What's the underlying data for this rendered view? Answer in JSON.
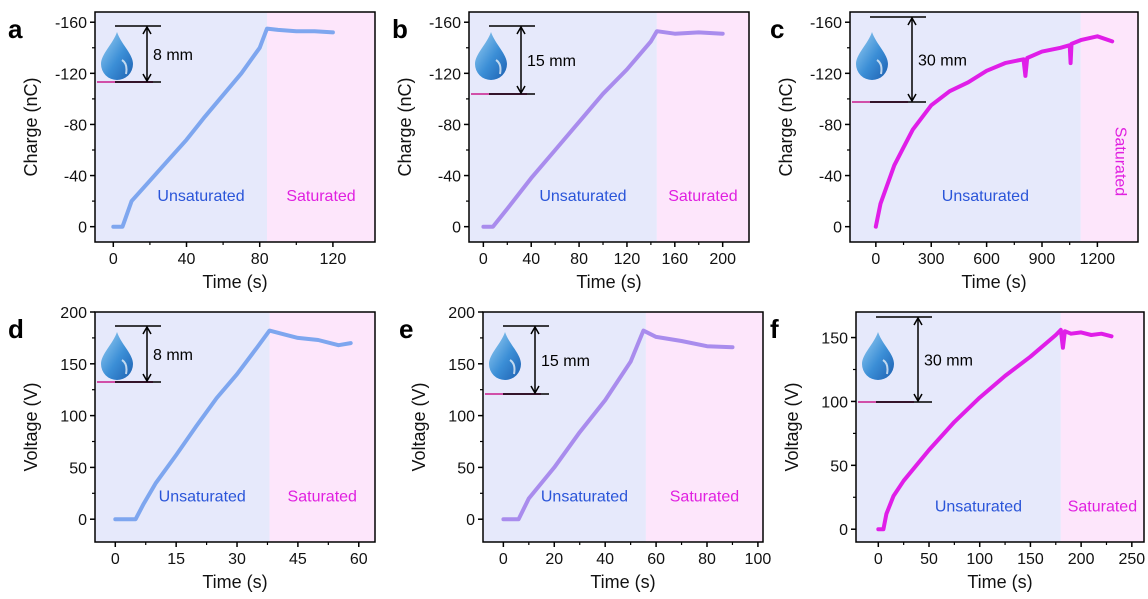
{
  "figure": {
    "colors": {
      "unsat_bg": "#e6e9fb",
      "sat_bg": "#fde6fb",
      "unsat_text": "#2a55d9",
      "sat_text": "#e020e0",
      "blue_line": "#7ea6ef",
      "purple_line": "#a98ced",
      "magenta_line": "#e01ee8"
    },
    "icons": [
      "water-drop-icon"
    ]
  },
  "chart_data": [
    {
      "id": "a",
      "panel_label": "a",
      "type": "line",
      "xlabel": "Time (s)",
      "ylabel": "Charge (nC)",
      "xlim": [
        -10,
        143
      ],
      "ylim": [
        12,
        -168
      ],
      "y_inverted": true,
      "xticks": [
        0,
        40,
        80,
        120
      ],
      "xtick_labels": [
        "0",
        "40",
        "80",
        "120"
      ],
      "yticks": [
        0,
        -40,
        -80,
        -120,
        -160
      ],
      "ytick_labels": [
        "0",
        "-40",
        "-80",
        "-120",
        "-160"
      ],
      "unsaturated_range": [
        -10,
        84
      ],
      "saturated_range": [
        84,
        143
      ],
      "region_labels": {
        "unsaturated": "Unsaturated",
        "saturated": "Saturated"
      },
      "label_y": -20,
      "distance": "8 mm",
      "color": "#7ea6ef",
      "series": [
        {
          "x": [
            0,
            5,
            10,
            20,
            30,
            40,
            50,
            60,
            70,
            80,
            84,
            90,
            100,
            110,
            120
          ],
          "y": [
            0,
            0,
            -20,
            -36,
            -52,
            -68,
            -86,
            -103,
            -120,
            -140,
            -155,
            -154,
            -153,
            -153,
            -152
          ]
        }
      ]
    },
    {
      "id": "b",
      "panel_label": "b",
      "type": "line",
      "xlabel": "Time (s)",
      "ylabel": "Charge (nC)",
      "xlim": [
        -12,
        222
      ],
      "ylim": [
        12,
        -168
      ],
      "y_inverted": true,
      "xticks": [
        0,
        40,
        80,
        120,
        160,
        200
      ],
      "xtick_labels": [
        "0",
        "40",
        "80",
        "120",
        "160",
        "200"
      ],
      "yticks": [
        0,
        -40,
        -80,
        -120,
        -160
      ],
      "ytick_labels": [
        "0",
        "-40",
        "-80",
        "-120",
        "-160"
      ],
      "unsaturated_range": [
        -12,
        145
      ],
      "saturated_range": [
        145,
        222
      ],
      "region_labels": {
        "unsaturated": "Unsaturated",
        "saturated": "Saturated"
      },
      "label_y": -20,
      "distance": "15 mm",
      "color": "#a98ced",
      "series": [
        {
          "x": [
            0,
            8,
            20,
            40,
            60,
            80,
            100,
            120,
            140,
            145,
            160,
            180,
            200
          ],
          "y": [
            0,
            0,
            -14,
            -38,
            -60,
            -82,
            -104,
            -123,
            -145,
            -153,
            -151,
            -152,
            -151
          ]
        }
      ]
    },
    {
      "id": "c",
      "panel_label": "c",
      "type": "line",
      "xlabel": "Time (s)",
      "ylabel": "Charge (nC)",
      "xlim": [
        -140,
        1420
      ],
      "ylim": [
        12,
        -168
      ],
      "y_inverted": true,
      "xticks": [
        0,
        300,
        600,
        900,
        1200
      ],
      "xtick_labels": [
        "0",
        "300",
        "600",
        "900",
        "1200"
      ],
      "yticks": [
        0,
        -40,
        -80,
        -120,
        -160
      ],
      "ytick_labels": [
        "0",
        "-40",
        "-80",
        "-120",
        "-160"
      ],
      "unsaturated_range": [
        -140,
        1110
      ],
      "saturated_range": [
        1110,
        1420
      ],
      "region_labels": {
        "unsaturated": "Unsaturated",
        "saturated": "Saturated"
      },
      "label_y": -20,
      "saturated_label_rotated": true,
      "distance": "30 mm",
      "color": "#e01ee8",
      "series": [
        {
          "x": [
            0,
            25,
            50,
            100,
            150,
            200,
            300,
            400,
            500,
            600,
            700,
            800,
            810,
            820,
            900,
            1000,
            1050,
            1055,
            1060,
            1110,
            1200,
            1280
          ],
          "y": [
            0,
            -18,
            -28,
            -48,
            -62,
            -76,
            -95,
            -106,
            -113,
            -122,
            -128,
            -131,
            -118,
            -132,
            -137,
            -140,
            -142,
            -128,
            -143,
            -146,
            -149,
            -145
          ]
        }
      ]
    },
    {
      "id": "d",
      "panel_label": "d",
      "type": "line",
      "xlabel": "Time (s)",
      "ylabel": "Voltage (V)",
      "xlim": [
        -5,
        64
      ],
      "ylim": [
        -22,
        200
      ],
      "y_inverted": false,
      "xticks": [
        0,
        15,
        30,
        45,
        60
      ],
      "xtick_labels": [
        "0",
        "15",
        "30",
        "45",
        "60"
      ],
      "yticks": [
        0,
        50,
        100,
        150,
        200
      ],
      "ytick_labels": [
        "0",
        "50",
        "100",
        "150",
        "200"
      ],
      "unsaturated_range": [
        -5,
        38
      ],
      "saturated_range": [
        38,
        64
      ],
      "region_labels": {
        "unsaturated": "Unsaturated",
        "saturated": "Saturated"
      },
      "label_y": 17,
      "distance": "8 mm",
      "color": "#7ea6ef",
      "series": [
        {
          "x": [
            0,
            5,
            7,
            10,
            15,
            20,
            25,
            30,
            35,
            38,
            42,
            45,
            50,
            55,
            58
          ],
          "y": [
            0,
            0,
            15,
            35,
            62,
            90,
            117,
            140,
            166,
            182,
            178,
            175,
            173,
            168,
            170
          ]
        }
      ]
    },
    {
      "id": "e",
      "panel_label": "e",
      "type": "line",
      "xlabel": "Time (s)",
      "ylabel": "Voltage (V)",
      "xlim": [
        -8,
        102
      ],
      "ylim": [
        -22,
        200
      ],
      "y_inverted": false,
      "xticks": [
        0,
        20,
        40,
        60,
        80,
        100
      ],
      "xtick_labels": [
        "0",
        "20",
        "40",
        "60",
        "80",
        "100"
      ],
      "yticks": [
        0,
        50,
        100,
        150,
        200
      ],
      "ytick_labels": [
        "0",
        "50",
        "100",
        "150",
        "200"
      ],
      "unsaturated_range": [
        -8,
        56
      ],
      "saturated_range": [
        56,
        102
      ],
      "region_labels": {
        "unsaturated": "Unsaturated",
        "saturated": "Saturated"
      },
      "label_y": 17,
      "distance": "15 mm",
      "color": "#a98ced",
      "series": [
        {
          "x": [
            0,
            6,
            10,
            20,
            30,
            40,
            50,
            55,
            60,
            70,
            80,
            90
          ],
          "y": [
            0,
            0,
            20,
            50,
            84,
            115,
            152,
            182,
            176,
            172,
            167,
            166
          ]
        }
      ]
    },
    {
      "id": "f",
      "panel_label": "f",
      "type": "line",
      "xlabel": "Time (s)",
      "ylabel": "Voltage (V)",
      "xlim": [
        -22,
        262
      ],
      "ylim": [
        -10,
        170
      ],
      "y_inverted": false,
      "xticks": [
        0,
        50,
        100,
        150,
        200,
        250
      ],
      "xtick_labels": [
        "0",
        "50",
        "100",
        "150",
        "200",
        "250"
      ],
      "yticks": [
        0,
        50,
        100,
        150
      ],
      "ytick_labels": [
        "0",
        "50",
        "100",
        "150"
      ],
      "unsaturated_range": [
        -22,
        180
      ],
      "saturated_range": [
        180,
        262
      ],
      "region_labels": {
        "unsaturated": "Unsaturated",
        "saturated": "Saturated"
      },
      "label_y": 14,
      "distance": "30 mm",
      "color": "#e01ee8",
      "series": [
        {
          "x": [
            0,
            5,
            8,
            15,
            25,
            50,
            75,
            100,
            125,
            150,
            175,
            180,
            182,
            184,
            190,
            200,
            210,
            220,
            230
          ],
          "y": [
            0,
            0,
            12,
            26,
            38,
            62,
            84,
            103,
            120,
            135,
            152,
            156,
            142,
            155,
            153,
            154,
            152,
            153,
            151
          ]
        }
      ]
    }
  ]
}
